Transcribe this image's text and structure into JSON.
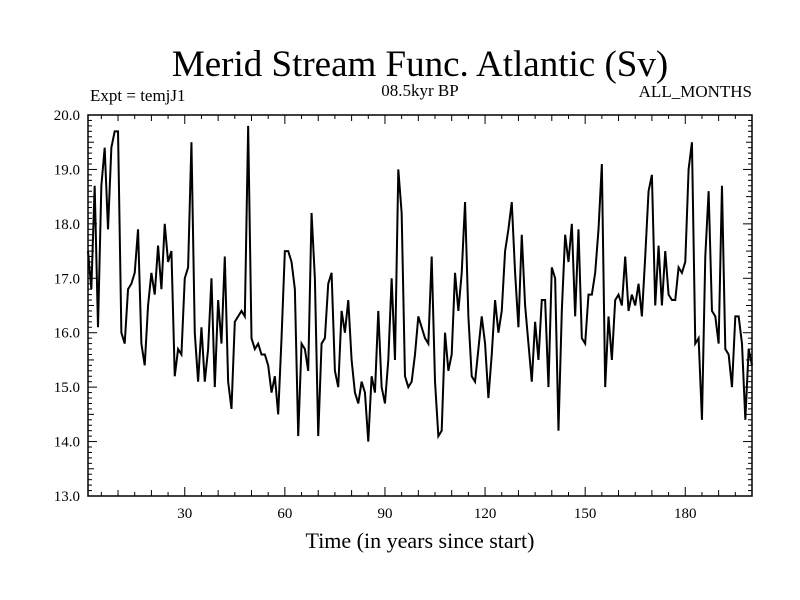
{
  "chart_data": {
    "type": "line",
    "title": "Merid Stream Func. Atlantic (Sv)",
    "subtitle_left": "Expt = temjJ1",
    "subtitle_center": "08.5kyr BP",
    "subtitle_right": "ALL_MONTHS",
    "xlabel": "Time (in years since start)",
    "ylabel": "",
    "xlim": [
      1,
      200
    ],
    "ylim": [
      13.0,
      20.0
    ],
    "x_ticks": [
      30,
      60,
      90,
      120,
      150,
      180
    ],
    "y_ticks": [
      "13.0",
      "14.0",
      "15.0",
      "16.0",
      "17.0",
      "18.0",
      "19.0",
      "20.0"
    ],
    "x_start": 1,
    "x_step": 1,
    "series": [
      {
        "name": "Merid Stream Func. Atlantic",
        "values": [
          17.5,
          16.8,
          18.7,
          16.1,
          18.7,
          19.4,
          17.9,
          19.4,
          19.7,
          19.7,
          16.0,
          15.8,
          16.8,
          16.9,
          17.1,
          17.9,
          15.8,
          15.4,
          16.5,
          17.1,
          16.7,
          17.6,
          16.8,
          18.0,
          17.3,
          17.5,
          15.2,
          15.7,
          15.6,
          17.0,
          17.2,
          19.5,
          16.0,
          15.1,
          16.1,
          15.1,
          15.7,
          17.0,
          15.0,
          16.6,
          15.8,
          17.4,
          15.1,
          14.6,
          16.2,
          16.3,
          16.4,
          16.3,
          19.8,
          15.9,
          15.7,
          15.8,
          15.6,
          15.6,
          15.4,
          14.9,
          15.2,
          14.5,
          15.9,
          17.5,
          17.5,
          17.3,
          16.8,
          14.1,
          15.8,
          15.7,
          15.3,
          18.2,
          17.0,
          14.1,
          15.8,
          15.9,
          16.9,
          17.1,
          15.3,
          15.0,
          16.4,
          16.0,
          16.6,
          15.5,
          14.9,
          14.7,
          15.1,
          14.9,
          14.0,
          15.2,
          14.9,
          16.4,
          15.0,
          14.7,
          15.5,
          17.0,
          15.5,
          19.0,
          18.2,
          15.2,
          15.0,
          15.1,
          15.6,
          16.3,
          16.1,
          15.9,
          15.8,
          17.4,
          15.1,
          14.1,
          14.2,
          16.0,
          15.3,
          15.6,
          17.1,
          16.4,
          17.1,
          18.4,
          16.3,
          15.2,
          15.1,
          15.7,
          16.3,
          15.8,
          14.8,
          15.6,
          16.6,
          16.0,
          16.4,
          17.5,
          17.9,
          18.4,
          17.1,
          16.1,
          17.8,
          16.5,
          15.8,
          15.1,
          16.2,
          15.5,
          16.6,
          16.6,
          15.0,
          17.2,
          17.0,
          14.2,
          16.4,
          17.8,
          17.3,
          18.0,
          16.3,
          17.9,
          15.9,
          15.8,
          16.7,
          16.7,
          17.1,
          17.9,
          19.1,
          15.0,
          16.3,
          15.5,
          16.6,
          16.7,
          16.5,
          17.4,
          16.4,
          16.7,
          16.5,
          16.9,
          16.3,
          17.4,
          18.6,
          18.9,
          16.5,
          17.6,
          16.5,
          17.5,
          16.7,
          16.6,
          16.6,
          17.2,
          17.1,
          17.3,
          19.0,
          19.5,
          15.8,
          15.9,
          14.4,
          17.4,
          18.6,
          16.4,
          16.3,
          15.8,
          18.7,
          15.7,
          15.6,
          15.0,
          16.3,
          16.3,
          15.8,
          14.4,
          15.7,
          15.4
        ]
      }
    ]
  }
}
